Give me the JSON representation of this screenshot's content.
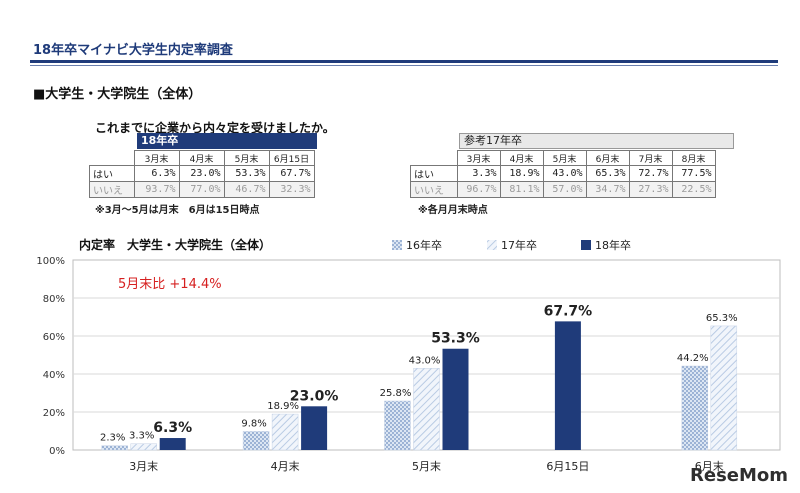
{
  "header": {
    "title": "18年卒マイナビ大学生内定率調査",
    "section": "■大学生・大学院生（全体）",
    "question": "これまでに企業から内々定を受けましたか。"
  },
  "table18": {
    "title": "18年卒",
    "months": [
      "3月末",
      "4月末",
      "5月末",
      "6月15日"
    ],
    "rows": [
      {
        "label": "はい",
        "values": [
          "6.3%",
          "23.0%",
          "53.3%",
          "67.7%"
        ]
      },
      {
        "label": "いいえ",
        "values": [
          "93.7%",
          "77.0%",
          "46.7%",
          "32.3%"
        ]
      }
    ],
    "note": "※3月～5月は月末　6月は15日時点"
  },
  "table17": {
    "title": "参考17年卒",
    "months": [
      "3月末",
      "4月末",
      "5月末",
      "6月末",
      "7月末",
      "8月末"
    ],
    "rows": [
      {
        "label": "はい",
        "values": [
          "3.3%",
          "18.9%",
          "43.0%",
          "65.3%",
          "72.7%",
          "77.5%"
        ]
      },
      {
        "label": "いいえ",
        "values": [
          "96.7%",
          "81.1%",
          "57.0%",
          "34.7%",
          "27.3%",
          "22.5%"
        ]
      }
    ],
    "note": "※各月月末時点"
  },
  "chart_data": {
    "type": "bar",
    "title": "内定率　大学生・大学院生（全体）",
    "categories": [
      "3月末",
      "4月末",
      "5月末",
      "6月15日",
      "6月末"
    ],
    "series": [
      {
        "name": "16年卒",
        "values": [
          2.3,
          9.8,
          25.8,
          null,
          44.2
        ],
        "labels": [
          "2.3%",
          "9.8%",
          "25.8%",
          "",
          "44.2%"
        ],
        "color": "#9fb4d6"
      },
      {
        "name": "17年卒",
        "values": [
          3.3,
          18.9,
          43.0,
          null,
          65.3
        ],
        "labels": [
          "3.3%",
          "18.9%",
          "43.0%",
          "",
          "65.3%"
        ],
        "color": "#c9d7ea"
      },
      {
        "name": "18年卒",
        "values": [
          6.3,
          23.0,
          53.3,
          67.7,
          null
        ],
        "labels": [
          "6.3%",
          "23.0%",
          "53.3%",
          "67.7%",
          ""
        ],
        "color": "#1f3b7a"
      }
    ],
    "ylim": [
      0,
      100
    ],
    "yticks": [
      "0%",
      "20%",
      "40%",
      "60%",
      "80%",
      "100%"
    ],
    "ytick_values": [
      0,
      20,
      40,
      60,
      80,
      100
    ],
    "annotation": "5月末比 +14.4%",
    "annotation_color": "#d62020",
    "grid": true
  },
  "watermark": "ReseMom"
}
